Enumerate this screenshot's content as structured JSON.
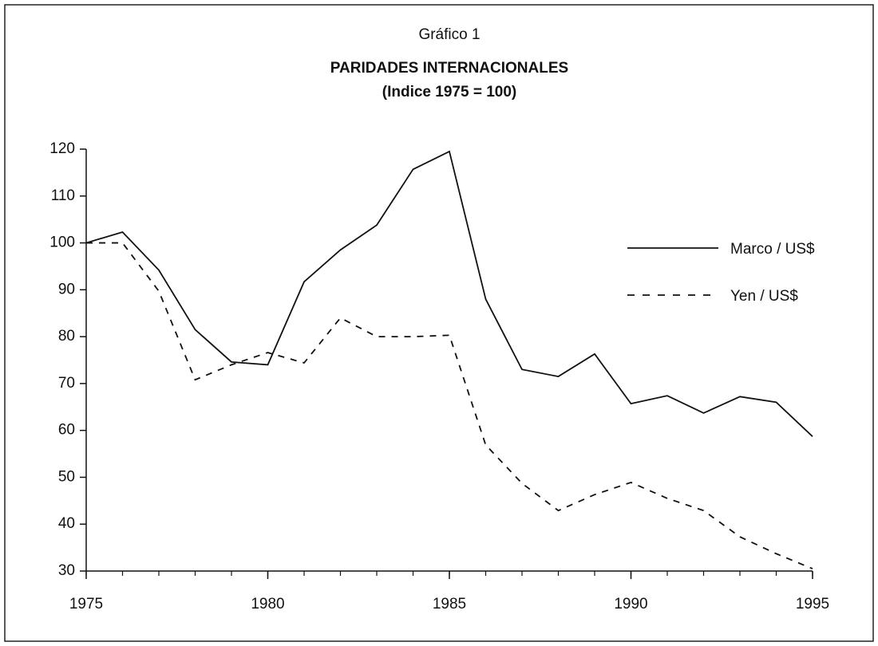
{
  "chart_data": {
    "type": "line",
    "label": "Gráfico 1",
    "title": "PARIDADES INTERNACIONALES",
    "subtitle": "(Indice 1975 = 100)",
    "x": [
      1975,
      1976,
      1977,
      1978,
      1979,
      1980,
      1981,
      1982,
      1983,
      1984,
      1985,
      1986,
      1987,
      1988,
      1989,
      1990,
      1991,
      1992,
      1993,
      1994,
      1995
    ],
    "series": [
      {
        "name": "Marco / US$",
        "color": "#111111",
        "style": "solid",
        "values": [
          100,
          102.3,
          94.2,
          81.5,
          74.6,
          74,
          91.7,
          98.5,
          103.8,
          115.7,
          119.5,
          88,
          73,
          71.5,
          76.3,
          65.7,
          67.4,
          63.7,
          67.2,
          66,
          58.7
        ]
      },
      {
        "name": "Yen / US$",
        "color": "#111111",
        "style": "dashed",
        "values": [
          100,
          100,
          89.7,
          70.8,
          74,
          76.6,
          74.4,
          84,
          80,
          80,
          80.3,
          56.9,
          48.7,
          42.9,
          46.3,
          48.9,
          45.5,
          42.9,
          37.3,
          33.7,
          30.5
        ]
      }
    ],
    "xlim": [
      1975,
      1995
    ],
    "xticks": [
      1975,
      1980,
      1985,
      1990,
      1995
    ],
    "ylim": [
      30,
      120
    ],
    "yticks": [
      30,
      40,
      50,
      60,
      70,
      80,
      90,
      100,
      110,
      120
    ],
    "grid": false,
    "legend": "right"
  }
}
